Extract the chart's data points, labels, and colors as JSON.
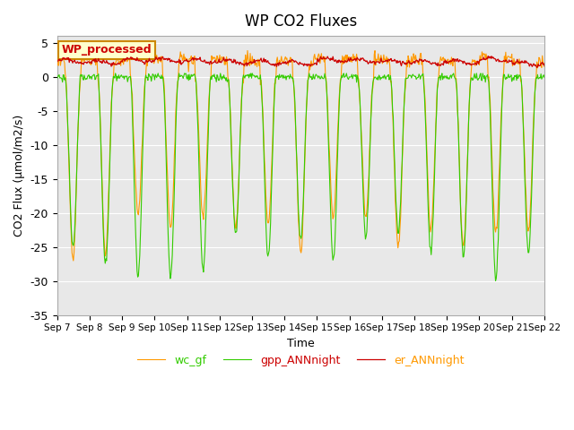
{
  "title": "WP CO2 Fluxes",
  "xlabel": "Time",
  "ylabel": "CO2 Flux (μmol/m2/s)",
  "ylim": [
    -35,
    6
  ],
  "yticks": [
    5,
    0,
    -5,
    -10,
    -15,
    -20,
    -25,
    -30,
    -35
  ],
  "bg_color": "#e8e8e8",
  "legend_label": "WP_processed",
  "legend_bg": "#ffffcc",
  "legend_edge": "#cc8800",
  "legend_text_color": "#cc0000",
  "line_colors": {
    "gpp": "#33cc00",
    "er": "#cc0000",
    "wc": "#ff9900"
  },
  "n_days": 15,
  "start_day": 7,
  "half_hours_per_day": 48,
  "tick_positions": [
    0,
    1,
    2,
    3,
    4,
    5,
    6,
    7,
    8,
    9,
    10,
    11,
    12,
    13,
    14,
    15
  ],
  "tick_labels": [
    "Sep 7",
    "Sep 8",
    "Sep 9",
    "Sep 10",
    "Sep 11",
    "Sep 12",
    "Sep 13",
    "Sep 14",
    "Sep 15",
    "Sep 16",
    "Sep 17",
    "Sep 18",
    "Sep 19",
    "Sep 20",
    "Sep 21",
    "Sep 22"
  ]
}
